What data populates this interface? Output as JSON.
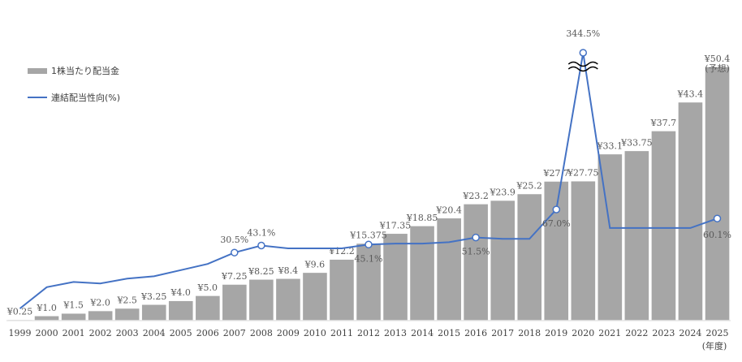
{
  "chart_data": {
    "type": "bar",
    "categories": [
      "1999",
      "2000",
      "2001",
      "2002",
      "2003",
      "2004",
      "2005",
      "2006",
      "2007",
      "2008",
      "2009",
      "2010",
      "2011",
      "2012",
      "2013",
      "2014",
      "2015",
      "2016",
      "2017",
      "2018",
      "2019",
      "2020",
      "2021",
      "2022",
      "2023",
      "2024",
      "2025"
    ],
    "x_unit_label": "(年度)",
    "series": [
      {
        "name": "1株当たり配当金",
        "type": "bar",
        "color": "#a6a6a6",
        "values": [
          0.25,
          1.0,
          1.5,
          2.0,
          2.5,
          3.25,
          4.0,
          5.0,
          7.25,
          8.25,
          8.4,
          9.6,
          12.2,
          15.375,
          17.35,
          18.85,
          20.4,
          23.2,
          23.9,
          25.2,
          27.7,
          27.75,
          33.1,
          33.75,
          37.7,
          43.4,
          50.4
        ],
        "labels": [
          "¥0.25",
          "¥1.0",
          "¥1.5",
          "¥2.0",
          "¥2.5",
          "¥3.25",
          "¥4.0",
          "¥5.0",
          "¥7.25",
          "¥8.25",
          "¥8.4",
          "¥9.6",
          "¥12.2",
          "¥15.375",
          "¥17.35",
          "¥18.85",
          "¥20.4",
          "¥23.2",
          "¥23.9",
          "¥25.2",
          "¥27.7",
          "¥27.75",
          "¥33.1",
          "¥33.75",
          "¥37.7",
          "¥43.4",
          "¥50.4"
        ],
        "last_note": "(予想)"
      },
      {
        "name": "連結配当性向(%)",
        "type": "line",
        "color": "#4472c4",
        "values": [
          0.5,
          5.0,
          6.1,
          5.8,
          6.8,
          7.3,
          8.6,
          9.9,
          12.3,
          13.8,
          13.2,
          13.2,
          13.2,
          14.0,
          14.2,
          14.2,
          14.5,
          15.5,
          15.2,
          15.2,
          21.4,
          54.5,
          17.5,
          17.5,
          17.5,
          17.5,
          19.5
        ],
        "markers": [
          {
            "index": 8,
            "label": "30.5%"
          },
          {
            "index": 9,
            "label": "43.1%"
          },
          {
            "index": 13,
            "label": "45.1%"
          },
          {
            "index": 17,
            "label": "51.5%"
          },
          {
            "index": 20,
            "label": "67.0%"
          },
          {
            "index": 21,
            "label": "344.5%"
          },
          {
            "index": 26,
            "label": "60.1%"
          }
        ],
        "axis_break_at_index": 21
      }
    ],
    "ylim": [
      0,
      54
    ],
    "legend_position": "top-left",
    "grid": false
  }
}
